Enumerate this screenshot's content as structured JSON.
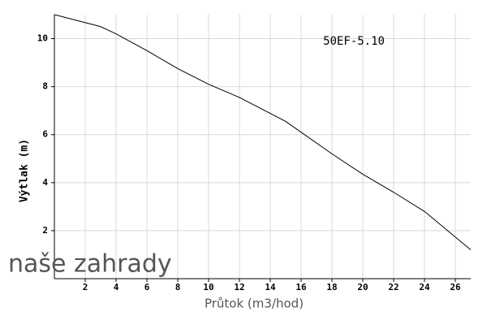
{
  "chart_data": {
    "type": "line",
    "annotation": "50EF-5.10",
    "watermark": "naše zahrady",
    "x_label": "Průtok (m3/hod)",
    "y_label": "Výtlak (m)",
    "series": [
      {
        "name": "50EF-5.10",
        "color": "#000000",
        "x": [
          0,
          3,
          4,
          6,
          8,
          10,
          12,
          15,
          18,
          20,
          22,
          24,
          27
        ],
        "values": [
          11,
          10.5,
          10.2,
          9.5,
          8.75,
          8.1,
          7.55,
          6.55,
          5.2,
          4.35,
          3.6,
          2.8,
          1.2
        ]
      }
    ],
    "xlim": [
      0,
      27
    ],
    "xticks": [
      2,
      4,
      6,
      8,
      10,
      12,
      14,
      16,
      18,
      20,
      22,
      24,
      26
    ],
    "ylim": [
      0,
      11
    ],
    "yticks": [
      2,
      4,
      6,
      8,
      10
    ],
    "grid": true
  }
}
